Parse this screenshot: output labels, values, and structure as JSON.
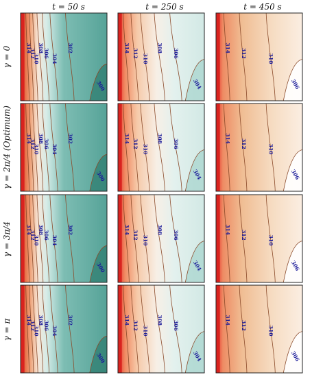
{
  "columns": [
    {
      "label": "t = 50 s"
    },
    {
      "label": "t = 250 s"
    },
    {
      "label": "t = 450 s"
    }
  ],
  "rows": [
    {
      "label": "γ = 0"
    },
    {
      "label": "γ = 2π/4 (Optimum)"
    },
    {
      "label": "γ = 3π/4"
    },
    {
      "label": "γ = π"
    }
  ],
  "contour_sets": [
    {
      "time": "t = 50 s",
      "levels": [
        "314",
        "312",
        "310",
        "308",
        "306",
        "304",
        "302",
        "300"
      ]
    },
    {
      "time": "t = 250 s",
      "levels": [
        "314",
        "312",
        "310",
        "308",
        "306",
        "304"
      ]
    },
    {
      "time": "t = 450 s",
      "levels": [
        "314",
        "312",
        "310",
        "308",
        "306"
      ]
    }
  ],
  "colors": {
    "hot": "#e8352b",
    "warm": "#e89a6a",
    "neutral": "#f7efe6",
    "cool": "#9dcfc8",
    "cold": "#2f7d70",
    "contour_line": "#8a4a2a",
    "label_text": "#1a1a99"
  }
}
